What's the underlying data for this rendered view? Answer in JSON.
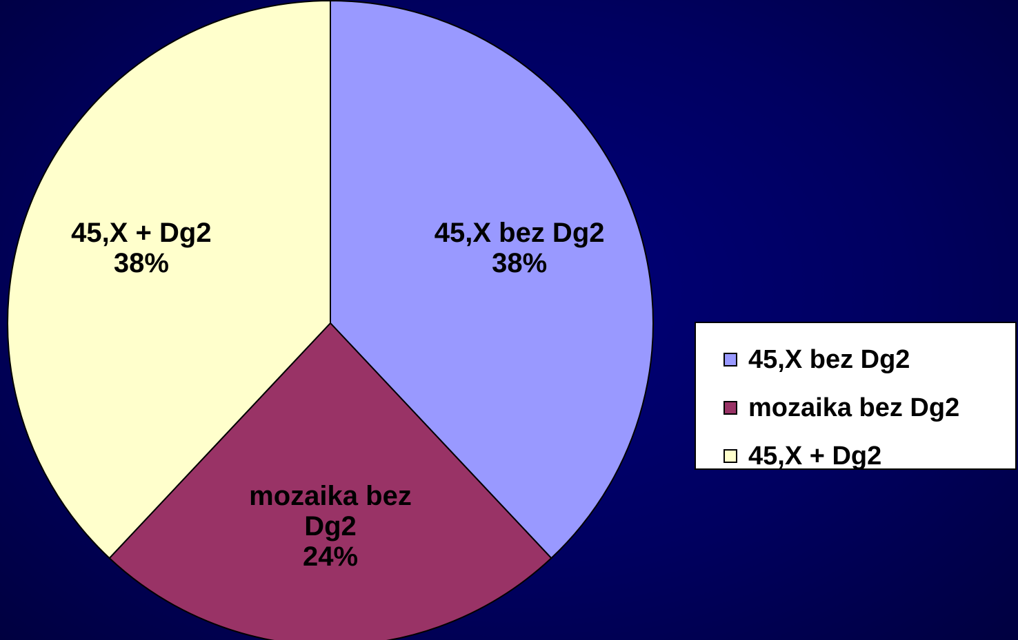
{
  "chart_data": {
    "type": "pie",
    "categories": [
      "45,X bez Dg2",
      "mozaika bez Dg2",
      "45,X + Dg2"
    ],
    "values": [
      38,
      24,
      38
    ],
    "value_labels": [
      "38%",
      "24%",
      "38%"
    ],
    "colors": [
      "#9999ff",
      "#993366",
      "#ffffcc"
    ],
    "legend": "right"
  }
}
